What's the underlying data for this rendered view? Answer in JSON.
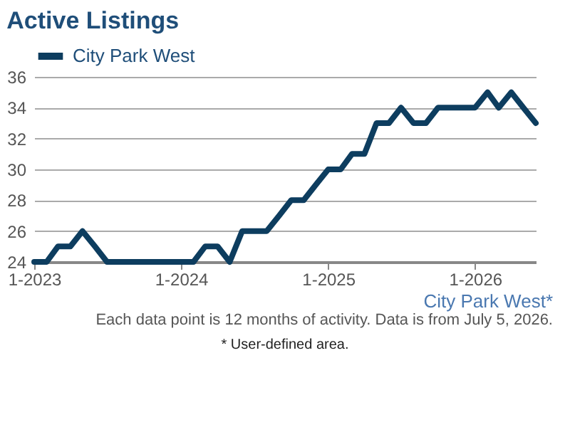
{
  "chart_data": {
    "type": "line",
    "title": "Active Listings",
    "x": [
      "2023-01",
      "2023-02",
      "2023-03",
      "2023-04",
      "2023-05",
      "2023-06",
      "2023-07",
      "2023-08",
      "2023-09",
      "2023-10",
      "2023-11",
      "2023-12",
      "2024-01",
      "2024-02",
      "2024-03",
      "2024-04",
      "2024-05",
      "2024-06",
      "2024-07",
      "2024-08",
      "2024-09",
      "2024-10",
      "2024-11",
      "2024-12",
      "2025-01",
      "2025-02",
      "2025-03",
      "2025-04",
      "2025-05",
      "2025-06",
      "2025-07",
      "2025-08",
      "2025-09",
      "2025-10",
      "2025-11",
      "2025-12",
      "2026-01",
      "2026-02",
      "2026-03",
      "2026-04",
      "2026-05",
      "2026-06"
    ],
    "series": [
      {
        "name": "City Park West",
        "color": "#0d3d5f",
        "values": [
          24,
          24,
          25,
          25,
          26,
          25,
          24,
          24,
          24,
          24,
          24,
          24,
          24,
          24,
          25,
          25,
          24,
          26,
          26,
          26,
          27,
          28,
          28,
          29,
          30,
          30,
          31,
          31,
          33,
          33,
          34,
          33,
          33,
          34,
          34,
          34,
          34,
          35,
          34,
          35,
          34,
          33
        ]
      }
    ],
    "xlim": [
      "2023-01",
      "2026-06"
    ],
    "xticks": [
      {
        "value": "2023-01",
        "label": "1-2023"
      },
      {
        "value": "2024-01",
        "label": "1-2024"
      },
      {
        "value": "2025-01",
        "label": "1-2025"
      },
      {
        "value": "2026-01",
        "label": "1-2026"
      }
    ],
    "ylim": [
      24,
      36
    ],
    "yticks": [
      24,
      26,
      28,
      30,
      32,
      34,
      36
    ],
    "grid": "y",
    "legend": "top",
    "marker": "none",
    "line_style": "solid",
    "annotations": [
      "City Park West*",
      "Each data point is 12 months of activity. Data is from July 5, 2026.",
      "* User-defined area."
    ]
  }
}
